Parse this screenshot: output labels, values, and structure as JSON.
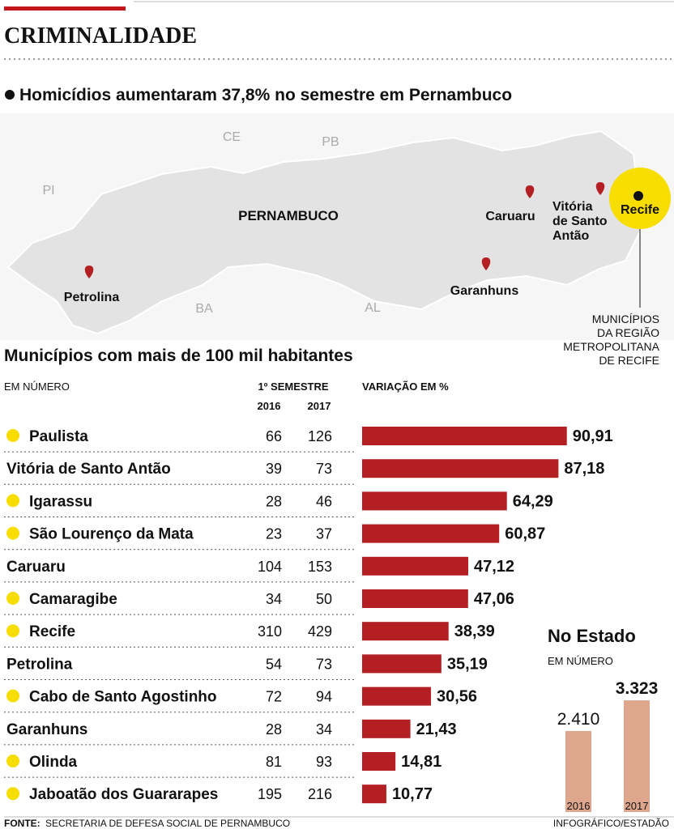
{
  "header": {
    "section": "CRIMINALIDADE",
    "headline": "Homicídios aumentaram 37,8% no semestre em Pernambuco"
  },
  "map": {
    "state_labels": [
      {
        "text": "PI"
      },
      {
        "text": "CE"
      },
      {
        "text": "PB"
      },
      {
        "text": "PERNAMBUCO"
      },
      {
        "text": "BA"
      },
      {
        "text": "AL"
      }
    ],
    "cities": [
      {
        "lines": [
          "Petrolina"
        ]
      },
      {
        "lines": [
          "Garanhuns"
        ]
      },
      {
        "lines": [
          "Caruaru"
        ]
      },
      {
        "lines": [
          "Vitória",
          "de Santo",
          "Antão"
        ]
      },
      {
        "lines": [
          "Recife"
        ]
      }
    ],
    "note": [
      "MUNICÍPIOS",
      "DA REGIÃO",
      "METROPOLITANA",
      "DE RECIFE"
    ]
  },
  "chart_data": [
    {
      "type": "hbar",
      "title": "Municípios com mais de 100 mil habitantes",
      "subtitle": "EM NÚMERO",
      "table_header": "1º SEMESTRE",
      "columns": [
        "2016",
        "2017"
      ],
      "bar_header": "VARIAÇÃO EM %",
      "categories": [
        "Paulista",
        "Vitória de Santo Antão",
        "Igarassu",
        "São Lourenço da Mata",
        "Caruaru",
        "Camaragibe",
        "Recife",
        "Petrolina",
        "Cabo de Santo Agostinho",
        "Garanhuns",
        "Olinda",
        "Jaboatão dos Guararapes"
      ],
      "metro": [
        true,
        false,
        true,
        true,
        false,
        true,
        true,
        false,
        true,
        false,
        true,
        true
      ],
      "counts_2016": [
        66,
        39,
        28,
        23,
        104,
        34,
        310,
        54,
        72,
        28,
        81,
        195
      ],
      "counts_2017": [
        126,
        73,
        46,
        37,
        153,
        50,
        429,
        73,
        94,
        34,
        93,
        216
      ],
      "values": [
        90.91,
        87.18,
        64.29,
        60.87,
        47.12,
        47.06,
        38.39,
        35.19,
        30.56,
        21.43,
        14.81,
        10.77
      ],
      "value_labels": [
        "90,91",
        "87,18",
        "64,29",
        "60,87",
        "47,12",
        "47,06",
        "38,39",
        "35,19",
        "30,56",
        "21,43",
        "14,81",
        "10,77"
      ],
      "color": "#b41f24",
      "marker_color": "#f7dd00"
    },
    {
      "type": "vbar",
      "title": "No Estado",
      "subtitle": "EM NÚMERO",
      "categories": [
        "2016",
        "2017"
      ],
      "values": [
        2410,
        3323
      ],
      "value_labels": [
        "2.410",
        "3.323"
      ],
      "color": "#dfa68e"
    }
  ],
  "footer": {
    "source_label": "FONTE:",
    "source": "SECRETARIA DE DEFESA SOCIAL DE PERNAMBUCO",
    "credit": "INFOGRÁFICO/ESTADÃO"
  }
}
